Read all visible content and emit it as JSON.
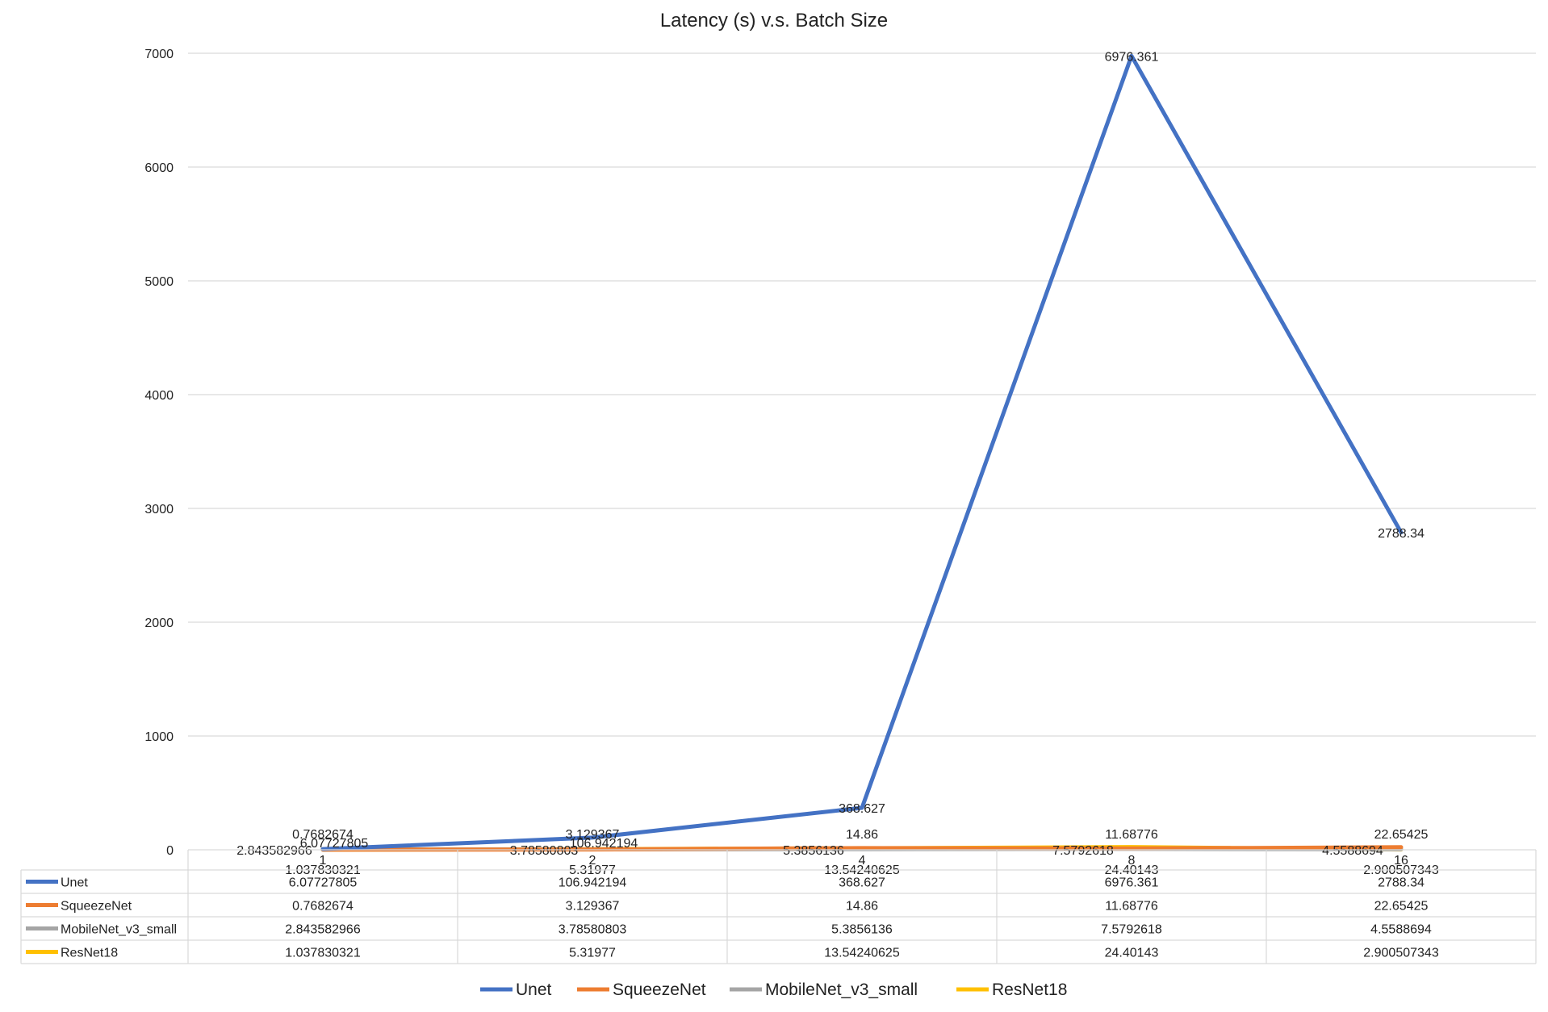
{
  "chart_data": {
    "type": "line",
    "title": "Latency (s) v.s. Batch Size",
    "categories": [
      "1",
      "2",
      "4",
      "8",
      "16"
    ],
    "ylim": [
      0,
      7000
    ],
    "yticks": [
      0,
      1000,
      2000,
      3000,
      4000,
      5000,
      6000,
      7000
    ],
    "grid": true,
    "legend_position": "bottom",
    "has_data_table": true,
    "series": [
      {
        "name": "Unet",
        "color": "#4472C4",
        "values": [
          6.07727805,
          106.942194,
          368.627,
          6976.361,
          2788.34
        ],
        "labels": [
          "6.07727805",
          "106.942194",
          "368.627",
          "6976.361",
          "2788.34"
        ]
      },
      {
        "name": "SqueezeNet",
        "color": "#ED7D31",
        "values": [
          0.7682674,
          3.129367,
          14.86,
          11.68776,
          22.65425
        ],
        "labels": [
          "0.7682674",
          "3.129367",
          "14.86",
          "11.68776",
          "22.65425"
        ]
      },
      {
        "name": "MobileNet_v3_small",
        "color": "#A5A5A5",
        "values": [
          2.843582966,
          3.78580803,
          5.3856136,
          7.5792618,
          4.5588694
        ],
        "labels": [
          "2.843582966",
          "3.78580803",
          "5.3856136",
          "7.5792618",
          "4.5588694"
        ]
      },
      {
        "name": "ResNet18",
        "color": "#FFC000",
        "values": [
          1.037830321,
          5.31977,
          13.54240625,
          24.40143,
          2.900507343
        ],
        "labels": [
          "1.037830321",
          "5.31977",
          "13.54240625",
          "24.40143",
          "2.900507343"
        ]
      }
    ]
  }
}
